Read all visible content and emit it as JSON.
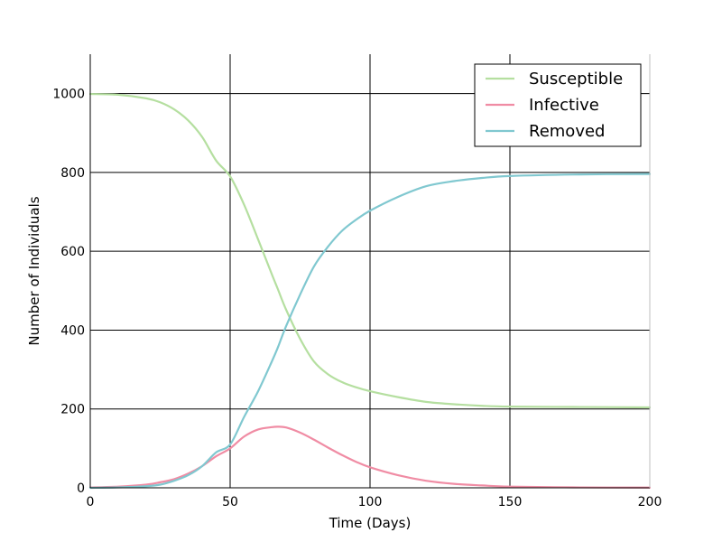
{
  "chart_data": {
    "type": "line",
    "title": "",
    "xlabel": "Time (Days)",
    "ylabel": "Number of Individuals",
    "xlim": [
      0,
      200
    ],
    "ylim": [
      0,
      1100
    ],
    "xticks": [
      0,
      50,
      100,
      150,
      200
    ],
    "yticks": [
      0,
      200,
      400,
      600,
      800,
      1000
    ],
    "xtick_labels": [
      "0",
      "50",
      "100",
      "150",
      "200"
    ],
    "ytick_labels": [
      "0",
      "200",
      "400",
      "600",
      "800",
      "1000"
    ],
    "grid": true,
    "legend_position": "top-right",
    "x": [
      0,
      10,
      20,
      25,
      30,
      35,
      40,
      45,
      50,
      55,
      60,
      65,
      67,
      70,
      75,
      80,
      85,
      90,
      95,
      100,
      110,
      120,
      130,
      140,
      150,
      175,
      200
    ],
    "series": [
      {
        "name": "Susceptible",
        "color": "#b5dfa0",
        "values": [
          999,
          997,
          988,
          978,
          960,
          932,
          890,
          830,
          790,
          718,
          630,
          540,
          505,
          452,
          378,
          320,
          288,
          268,
          255,
          245,
          230,
          218,
          212,
          208,
          206,
          205,
          204
        ]
      },
      {
        "name": "Infective",
        "color": "#f08ca4",
        "values": [
          1,
          3,
          8,
          14,
          22,
          36,
          55,
          80,
          100,
          130,
          148,
          154,
          155,
          153,
          140,
          122,
          102,
          83,
          66,
          52,
          32,
          18,
          10,
          6,
          3,
          1,
          0.5
        ]
      },
      {
        "name": "Removed",
        "color": "#80c8d0",
        "values": [
          0,
          1,
          4,
          8,
          18,
          32,
          55,
          90,
          110,
          180,
          245,
          322,
          355,
          410,
          490,
          562,
          612,
          652,
          680,
          703,
          738,
          765,
          778,
          786,
          791,
          795,
          796
        ]
      }
    ]
  }
}
